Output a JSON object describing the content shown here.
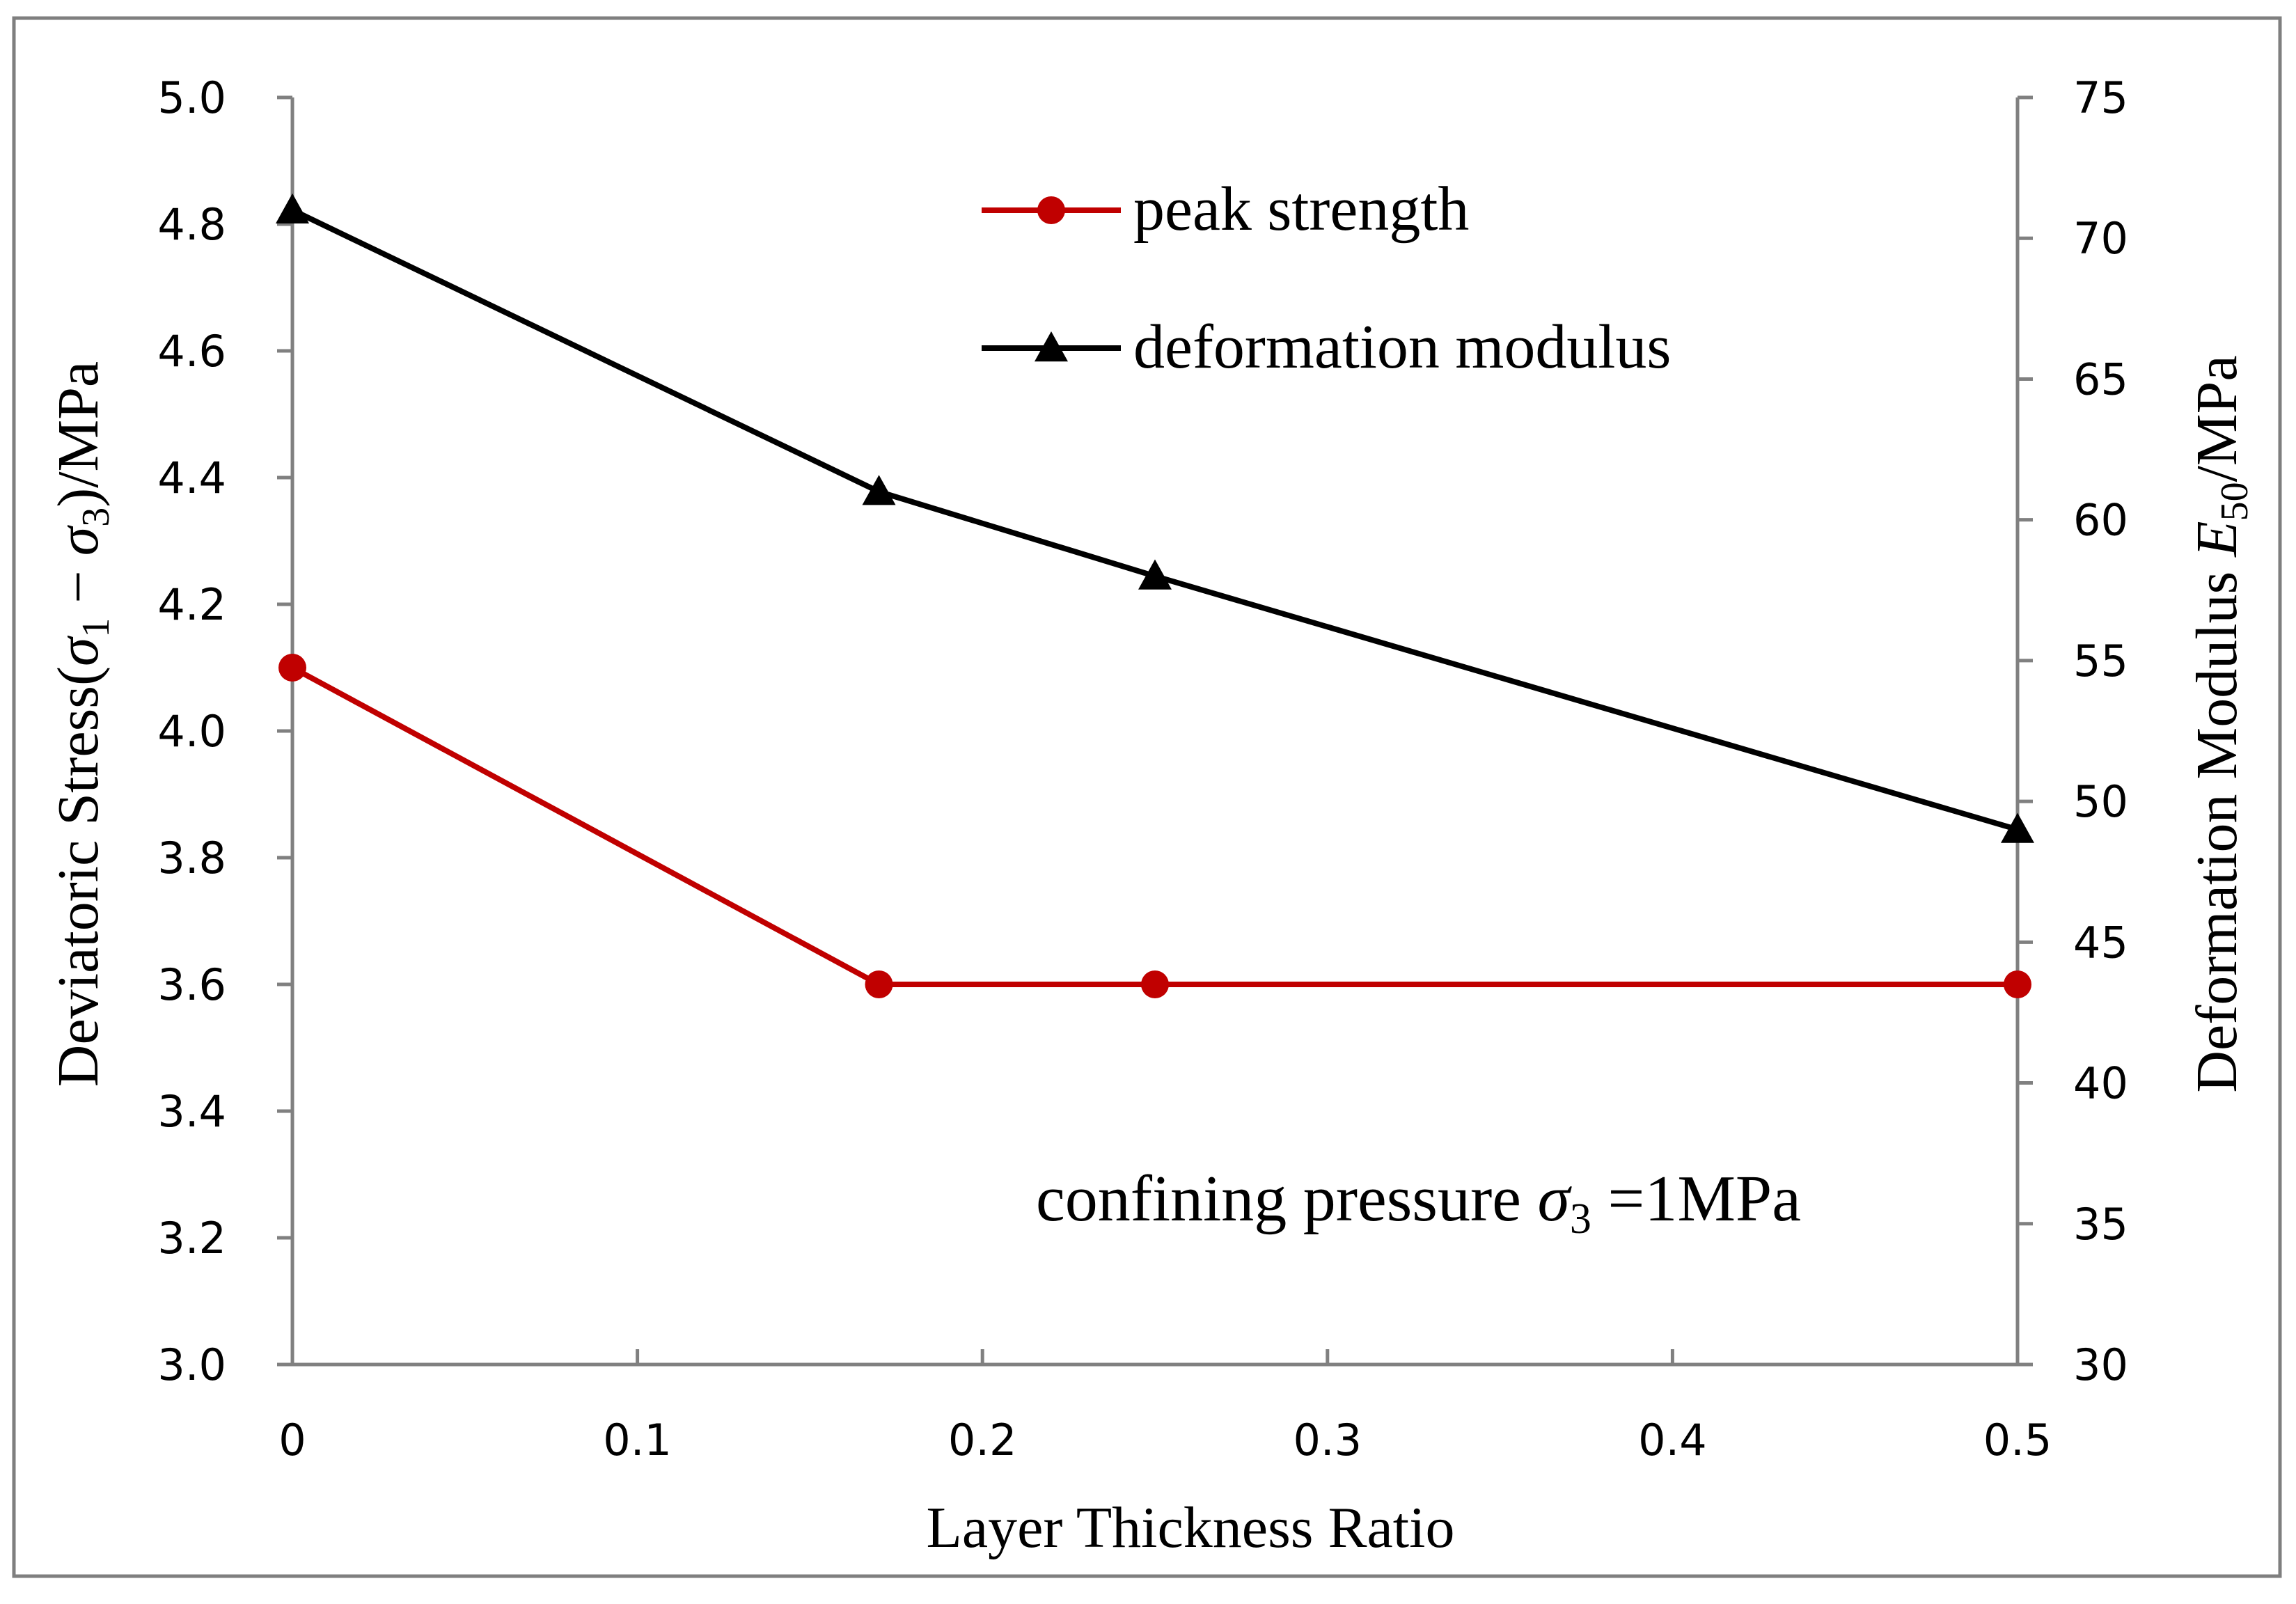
{
  "chart_data": {
    "type": "line",
    "title": "",
    "xlabel": "Layer Thickness Ratio",
    "ylabel_left": {
      "main": "Deviatoric Stress(",
      "s1": "σ",
      "sub1": "1",
      "mid": " − ",
      "s3": "σ",
      "sub3": "3",
      "end": ")/MPa"
    },
    "ylabel_right": {
      "main": "Deformation Modulus ",
      "sym": "E",
      "sub": "50",
      "end": "/MPa"
    },
    "annotation": {
      "main": "confining pressure ",
      "sym": "σ",
      "sub": "3",
      "end": " =1MPa"
    },
    "x": [
      0,
      0.17,
      0.25,
      0.5
    ],
    "xlim": [
      0,
      0.5
    ],
    "ylim_left": [
      3.0,
      5.0
    ],
    "ylim_right": [
      30,
      75
    ],
    "x_ticks": [
      "0",
      "0.1",
      "0.2",
      "0.3",
      "0.4",
      "0.5"
    ],
    "y_left_ticks": [
      "3.0",
      "3.2",
      "3.4",
      "3.6",
      "3.8",
      "4.0",
      "4.2",
      "4.4",
      "4.6",
      "4.8",
      "5.0"
    ],
    "y_right_ticks": [
      "30",
      "35",
      "40",
      "45",
      "50",
      "55",
      "60",
      "65",
      "70",
      "75"
    ],
    "series": [
      {
        "name": "peak strength",
        "axis": "left",
        "marker": "circle",
        "color": "#c00000",
        "values": [
          4.1,
          3.6,
          3.6,
          3.6
        ]
      },
      {
        "name": "deformation modulus",
        "axis": "right",
        "marker": "triangle",
        "color": "#000000",
        "values": [
          71,
          61,
          58,
          49
        ]
      }
    ],
    "legend_position": "top-center",
    "grid": false,
    "axis_color": "#808080",
    "frame_color": "#7f7f7f"
  }
}
